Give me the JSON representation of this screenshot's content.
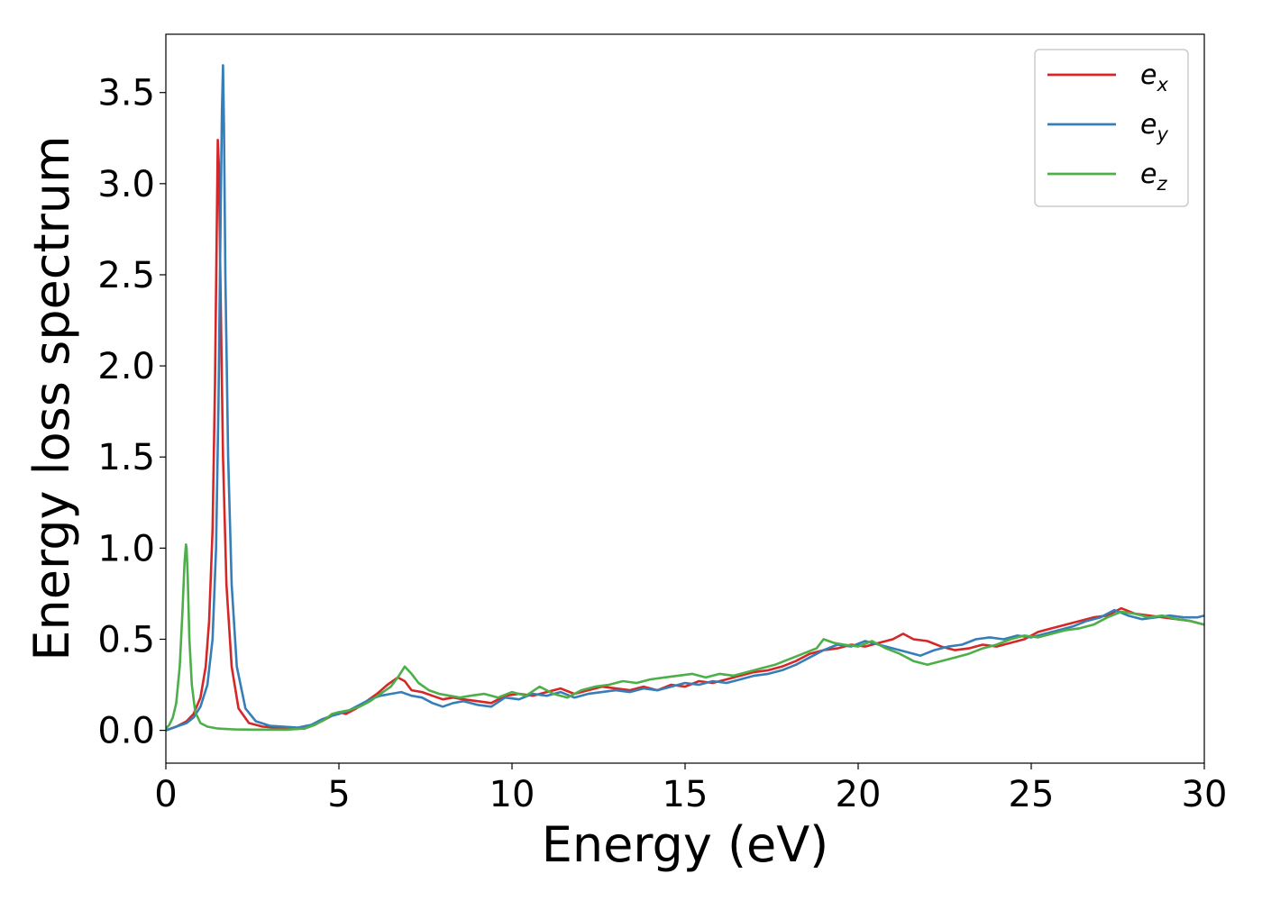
{
  "chart_data": {
    "type": "line",
    "title": "",
    "xlabel": "Energy (eV)",
    "ylabel": "Energy loss spectrum",
    "xlim": [
      0,
      30
    ],
    "ylim": [
      -0.18,
      3.82
    ],
    "xticks": [
      0,
      5,
      10,
      15,
      20,
      25,
      30
    ],
    "xtick_labels": [
      "0",
      "5",
      "10",
      "15",
      "20",
      "25",
      "30"
    ],
    "yticks": [
      0.0,
      0.5,
      1.0,
      1.5,
      2.0,
      2.5,
      3.0,
      3.5
    ],
    "ytick_labels": [
      "0.0",
      "0.5",
      "1.0",
      "1.5",
      "2.0",
      "2.5",
      "3.0",
      "3.5"
    ],
    "grid": false,
    "legend_position": "top-right",
    "series": [
      {
        "name": "e",
        "subscript": "x",
        "color": "#d62728",
        "x": [
          0,
          0.3,
          0.6,
          0.8,
          1.0,
          1.15,
          1.25,
          1.35,
          1.42,
          1.48,
          1.5,
          1.53,
          1.58,
          1.65,
          1.75,
          1.9,
          2.1,
          2.4,
          2.8,
          3.2,
          3.6,
          4.0,
          4.3,
          4.6,
          4.8,
          5.0,
          5.2,
          5.5,
          5.8,
          6.1,
          6.4,
          6.7,
          6.9,
          7.1,
          7.4,
          7.7,
          8.0,
          8.3,
          8.6,
          9.0,
          9.4,
          9.8,
          10.2,
          10.6,
          11.0,
          11.4,
          11.8,
          12.2,
          12.6,
          13.0,
          13.4,
          13.8,
          14.2,
          14.6,
          15.0,
          15.4,
          15.8,
          16.2,
          16.6,
          17.0,
          17.4,
          17.8,
          18.2,
          18.6,
          19.0,
          19.4,
          19.8,
          20.2,
          20.6,
          21.0,
          21.3,
          21.6,
          22.0,
          22.4,
          22.8,
          23.2,
          23.6,
          24.0,
          24.4,
          24.8,
          25.2,
          25.6,
          26.0,
          26.4,
          26.8,
          27.2,
          27.6,
          28.0,
          28.4,
          28.8,
          29.2,
          29.6,
          30.0
        ],
        "values": [
          0.0,
          0.02,
          0.05,
          0.09,
          0.18,
          0.35,
          0.6,
          1.1,
          1.9,
          2.9,
          3.24,
          3.1,
          2.4,
          1.5,
          0.8,
          0.35,
          0.12,
          0.04,
          0.02,
          0.015,
          0.01,
          0.01,
          0.03,
          0.06,
          0.08,
          0.1,
          0.09,
          0.12,
          0.16,
          0.2,
          0.25,
          0.29,
          0.27,
          0.22,
          0.21,
          0.19,
          0.17,
          0.18,
          0.17,
          0.16,
          0.15,
          0.19,
          0.2,
          0.19,
          0.21,
          0.23,
          0.2,
          0.22,
          0.24,
          0.23,
          0.22,
          0.24,
          0.22,
          0.25,
          0.24,
          0.27,
          0.26,
          0.28,
          0.3,
          0.32,
          0.33,
          0.35,
          0.38,
          0.42,
          0.44,
          0.45,
          0.47,
          0.46,
          0.48,
          0.5,
          0.53,
          0.5,
          0.49,
          0.46,
          0.44,
          0.45,
          0.47,
          0.46,
          0.48,
          0.5,
          0.54,
          0.56,
          0.58,
          0.6,
          0.62,
          0.63,
          0.67,
          0.64,
          0.63,
          0.62,
          0.61,
          0.6,
          0.58
        ]
      },
      {
        "name": "e",
        "subscript": "y",
        "color": "#377eb8",
        "x": [
          0,
          0.3,
          0.6,
          0.8,
          1.0,
          1.2,
          1.35,
          1.45,
          1.52,
          1.58,
          1.62,
          1.65,
          1.68,
          1.72,
          1.8,
          1.9,
          2.05,
          2.3,
          2.6,
          3.0,
          3.4,
          3.8,
          4.2,
          4.5,
          4.8,
          5.0,
          5.3,
          5.6,
          5.9,
          6.2,
          6.5,
          6.8,
          7.1,
          7.4,
          7.7,
          8.0,
          8.3,
          8.6,
          9.0,
          9.4,
          9.8,
          10.2,
          10.6,
          11.0,
          11.4,
          11.8,
          12.2,
          12.6,
          13.0,
          13.4,
          13.8,
          14.2,
          14.6,
          15.0,
          15.4,
          15.8,
          16.2,
          16.6,
          17.0,
          17.4,
          17.8,
          18.2,
          18.6,
          19.0,
          19.4,
          19.8,
          20.2,
          20.6,
          21.0,
          21.4,
          21.8,
          22.2,
          22.6,
          23.0,
          23.4,
          23.8,
          24.2,
          24.6,
          25.0,
          25.4,
          25.8,
          26.2,
          26.6,
          27.0,
          27.4,
          27.8,
          28.2,
          28.6,
          29.0,
          29.4,
          29.8,
          30.0
        ],
        "values": [
          0.0,
          0.02,
          0.04,
          0.07,
          0.13,
          0.25,
          0.5,
          1.0,
          1.8,
          2.8,
          3.4,
          3.65,
          3.3,
          2.5,
          1.5,
          0.8,
          0.35,
          0.12,
          0.05,
          0.025,
          0.02,
          0.015,
          0.03,
          0.06,
          0.08,
          0.09,
          0.11,
          0.14,
          0.17,
          0.19,
          0.2,
          0.21,
          0.19,
          0.18,
          0.15,
          0.13,
          0.15,
          0.16,
          0.14,
          0.13,
          0.18,
          0.17,
          0.2,
          0.19,
          0.21,
          0.18,
          0.2,
          0.21,
          0.22,
          0.21,
          0.23,
          0.22,
          0.24,
          0.26,
          0.25,
          0.27,
          0.26,
          0.28,
          0.3,
          0.31,
          0.33,
          0.36,
          0.4,
          0.44,
          0.47,
          0.46,
          0.49,
          0.47,
          0.45,
          0.43,
          0.41,
          0.44,
          0.46,
          0.47,
          0.5,
          0.51,
          0.5,
          0.52,
          0.51,
          0.53,
          0.55,
          0.57,
          0.6,
          0.62,
          0.66,
          0.63,
          0.61,
          0.62,
          0.63,
          0.62,
          0.62,
          0.63
        ]
      },
      {
        "name": "e",
        "subscript": "z",
        "color": "#4daf4a",
        "x": [
          0,
          0.1,
          0.2,
          0.3,
          0.4,
          0.48,
          0.54,
          0.58,
          0.6,
          0.63,
          0.68,
          0.75,
          0.85,
          1.0,
          1.2,
          1.5,
          2.0,
          2.5,
          3.0,
          3.5,
          4.0,
          4.3,
          4.6,
          4.8,
          5.0,
          5.3,
          5.6,
          5.9,
          6.2,
          6.5,
          6.7,
          6.9,
          7.1,
          7.3,
          7.6,
          7.9,
          8.2,
          8.5,
          8.8,
          9.2,
          9.6,
          10.0,
          10.4,
          10.8,
          11.2,
          11.6,
          12.0,
          12.4,
          12.8,
          13.2,
          13.6,
          14.0,
          14.4,
          14.8,
          15.2,
          15.6,
          16.0,
          16.4,
          16.8,
          17.2,
          17.6,
          18.0,
          18.4,
          18.8,
          19.0,
          19.3,
          19.6,
          20.0,
          20.4,
          20.8,
          21.2,
          21.6,
          22.0,
          22.4,
          22.8,
          23.2,
          23.6,
          24.0,
          24.4,
          24.8,
          25.2,
          25.6,
          26.0,
          26.4,
          26.8,
          27.2,
          27.6,
          28.0,
          28.4,
          28.8,
          29.2,
          29.6,
          30.0
        ],
        "values": [
          0.01,
          0.03,
          0.07,
          0.15,
          0.35,
          0.65,
          0.92,
          1.02,
          1.0,
          0.85,
          0.5,
          0.25,
          0.1,
          0.04,
          0.02,
          0.01,
          0.005,
          0.004,
          0.004,
          0.004,
          0.01,
          0.03,
          0.06,
          0.09,
          0.1,
          0.11,
          0.13,
          0.16,
          0.2,
          0.24,
          0.29,
          0.35,
          0.31,
          0.26,
          0.22,
          0.2,
          0.19,
          0.18,
          0.19,
          0.2,
          0.18,
          0.21,
          0.19,
          0.24,
          0.2,
          0.18,
          0.22,
          0.24,
          0.25,
          0.27,
          0.26,
          0.28,
          0.29,
          0.3,
          0.31,
          0.29,
          0.31,
          0.3,
          0.32,
          0.34,
          0.36,
          0.39,
          0.42,
          0.45,
          0.5,
          0.48,
          0.47,
          0.46,
          0.49,
          0.45,
          0.42,
          0.38,
          0.36,
          0.38,
          0.4,
          0.42,
          0.45,
          0.47,
          0.5,
          0.52,
          0.51,
          0.53,
          0.55,
          0.56,
          0.58,
          0.62,
          0.65,
          0.64,
          0.62,
          0.63,
          0.61,
          0.6,
          0.58
        ]
      }
    ]
  }
}
